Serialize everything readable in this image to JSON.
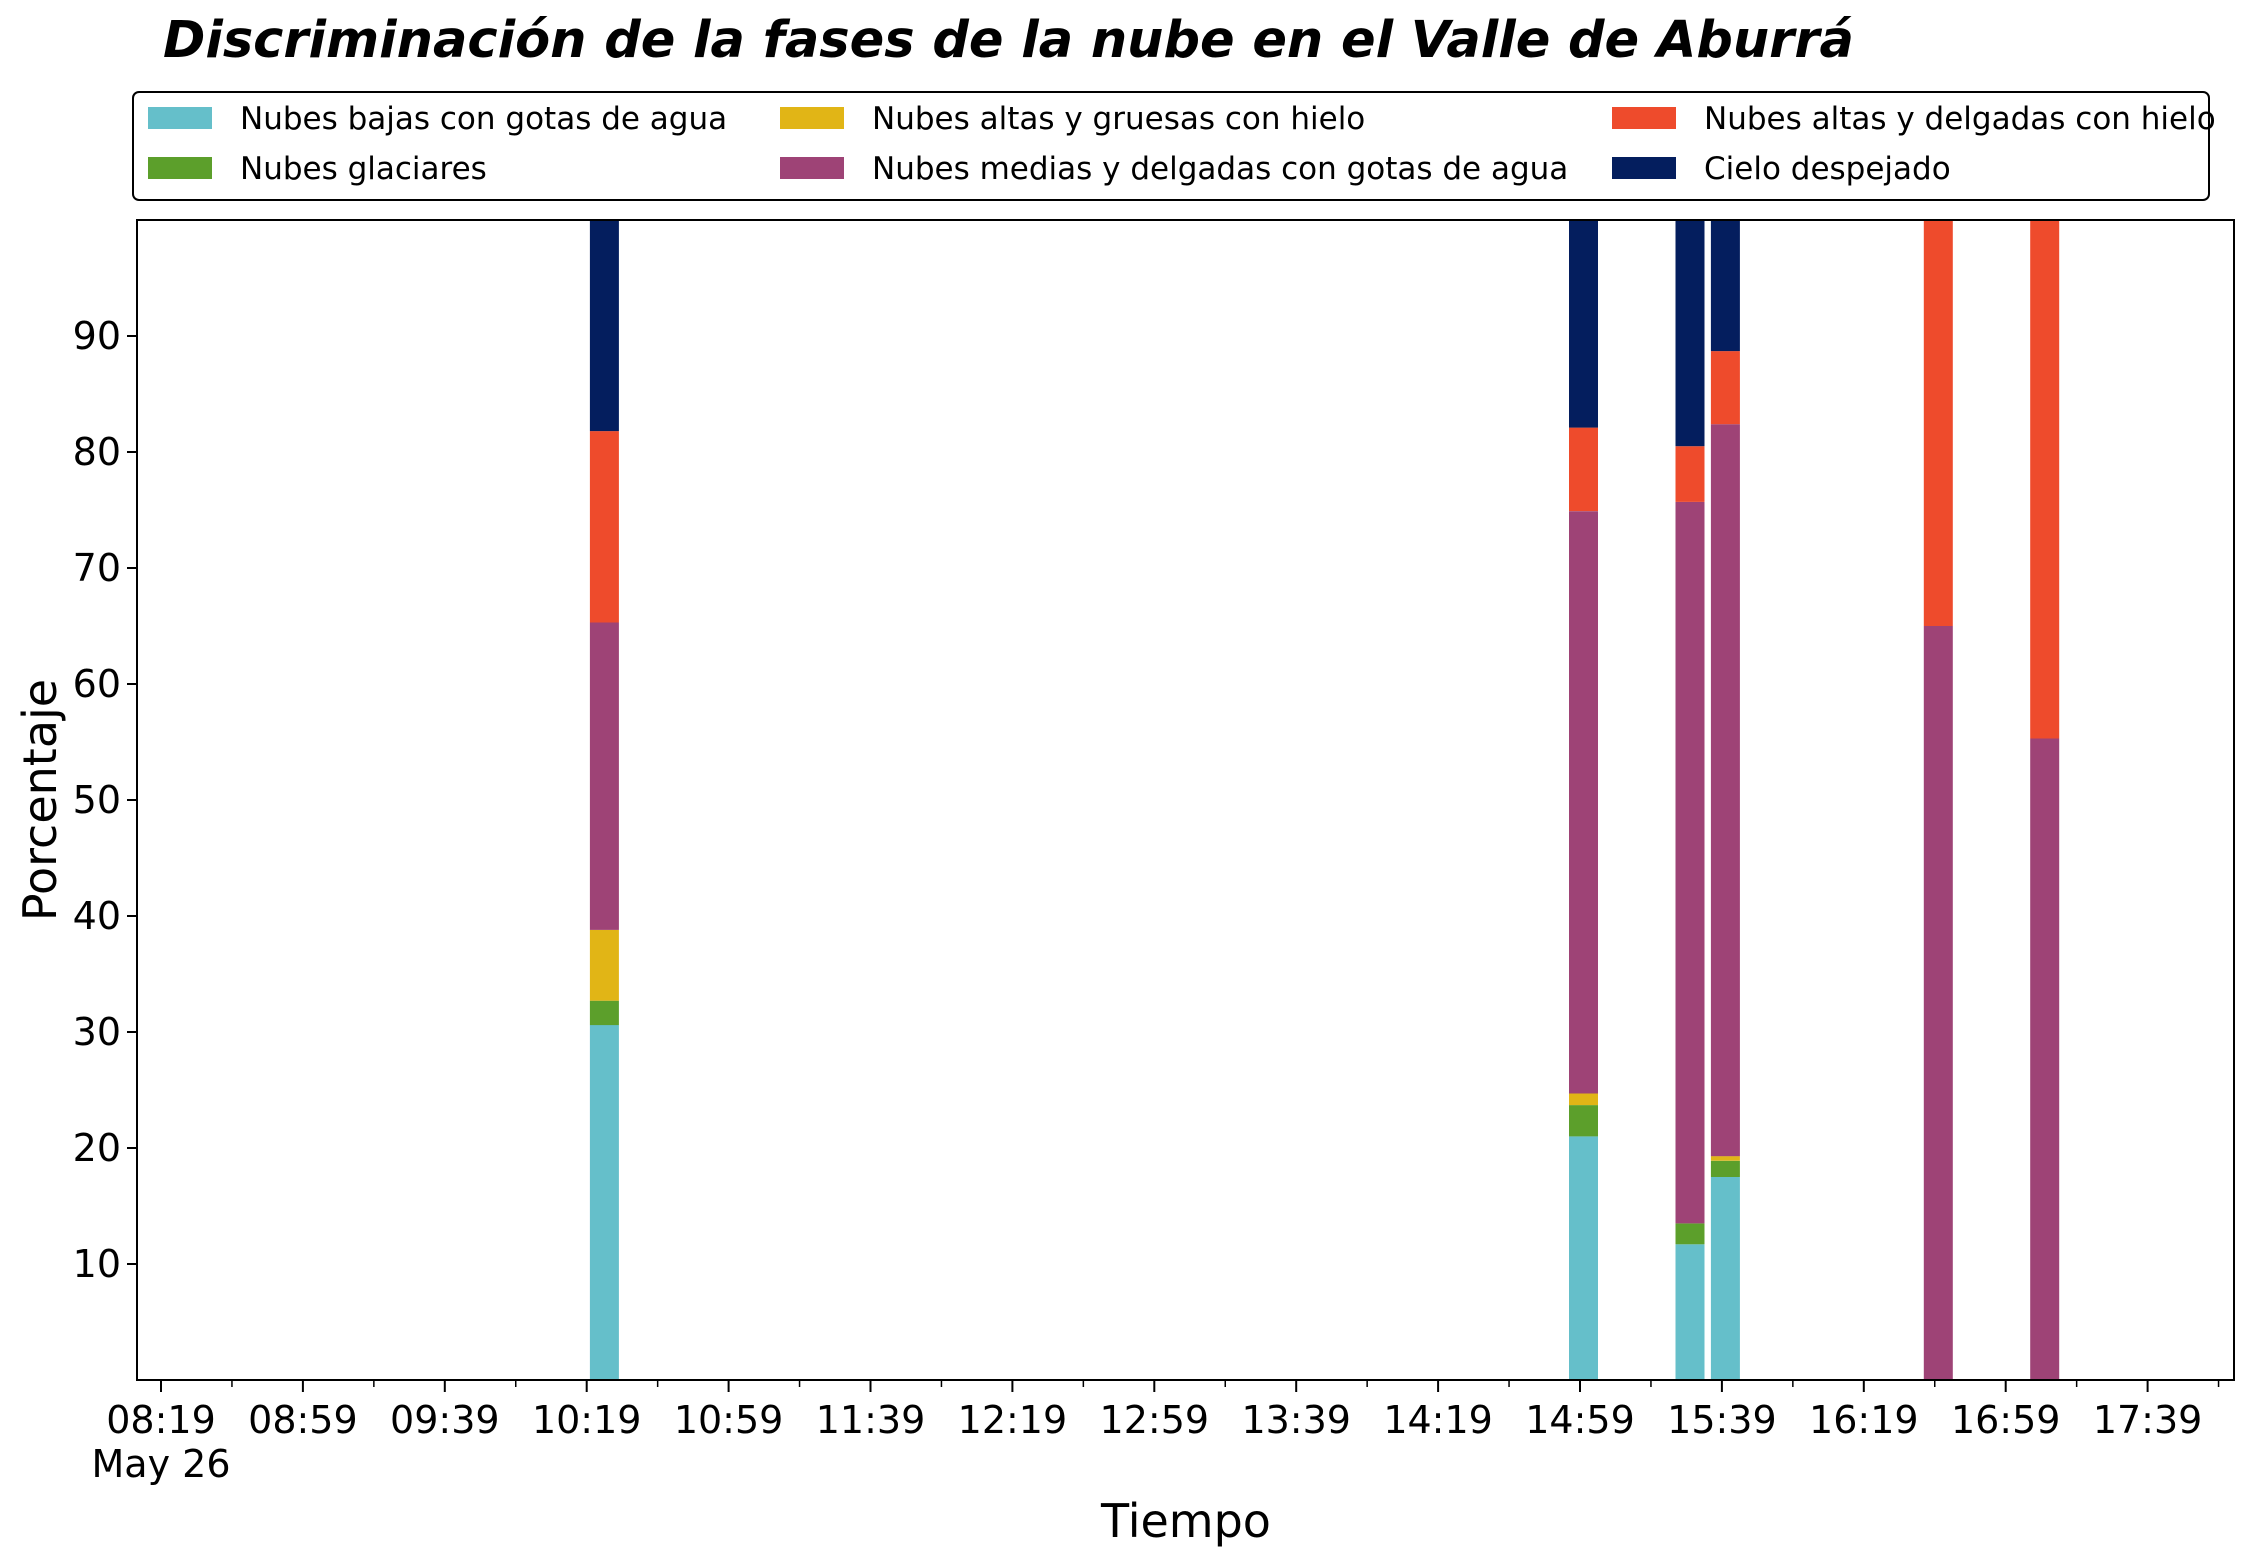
{
  "chart_data": {
    "type": "bar",
    "stacked": true,
    "title": "Discriminación de la fases de la nube en el Valle de Aburrá",
    "xlabel": "Tiempo",
    "ylabel": "Porcentaje",
    "ylim": [
      0,
      100
    ],
    "yticks": [
      10,
      20,
      30,
      40,
      50,
      60,
      70,
      80,
      90
    ],
    "xticks": [
      "08:19",
      "08:59",
      "09:39",
      "10:19",
      "10:59",
      "11:39",
      "12:19",
      "12:59",
      "13:39",
      "14:19",
      "14:59",
      "15:39",
      "16:19",
      "16:59",
      "17:39"
    ],
    "xtick_date": "May 26",
    "grid": false,
    "legend_position": "top",
    "categories": [
      "10:24",
      "15:00",
      "15:30",
      "15:40",
      "16:40",
      "17:10"
    ],
    "series": [
      {
        "name": "Nubes bajas con gotas de agua",
        "color": "#65bfca",
        "values": [
          30.6,
          21.0,
          11.7,
          17.5,
          0,
          0
        ]
      },
      {
        "name": "Nubes glaciares",
        "color": "#5c9f2b",
        "values": [
          2.1,
          2.7,
          1.8,
          1.4,
          0,
          0
        ]
      },
      {
        "name": "Nubes altas y gruesas con hielo",
        "color": "#e1b516",
        "values": [
          6.1,
          1.0,
          0,
          0.4,
          0,
          0
        ]
      },
      {
        "name": "Nubes medias y delgadas con gotas de agua",
        "color": "#9e4376",
        "values": [
          26.5,
          50.2,
          62.2,
          63.1,
          65.0,
          55.3
        ]
      },
      {
        "name": "Nubes altas y delgadas con hielo",
        "color": "#ee4b2c",
        "values": [
          16.5,
          7.2,
          4.8,
          6.3,
          35.0,
          44.7
        ]
      },
      {
        "name": "Cielo despejado",
        "color": "#041e5e",
        "values": [
          18.2,
          17.9,
          19.5,
          11.3,
          0,
          0
        ]
      }
    ]
  }
}
